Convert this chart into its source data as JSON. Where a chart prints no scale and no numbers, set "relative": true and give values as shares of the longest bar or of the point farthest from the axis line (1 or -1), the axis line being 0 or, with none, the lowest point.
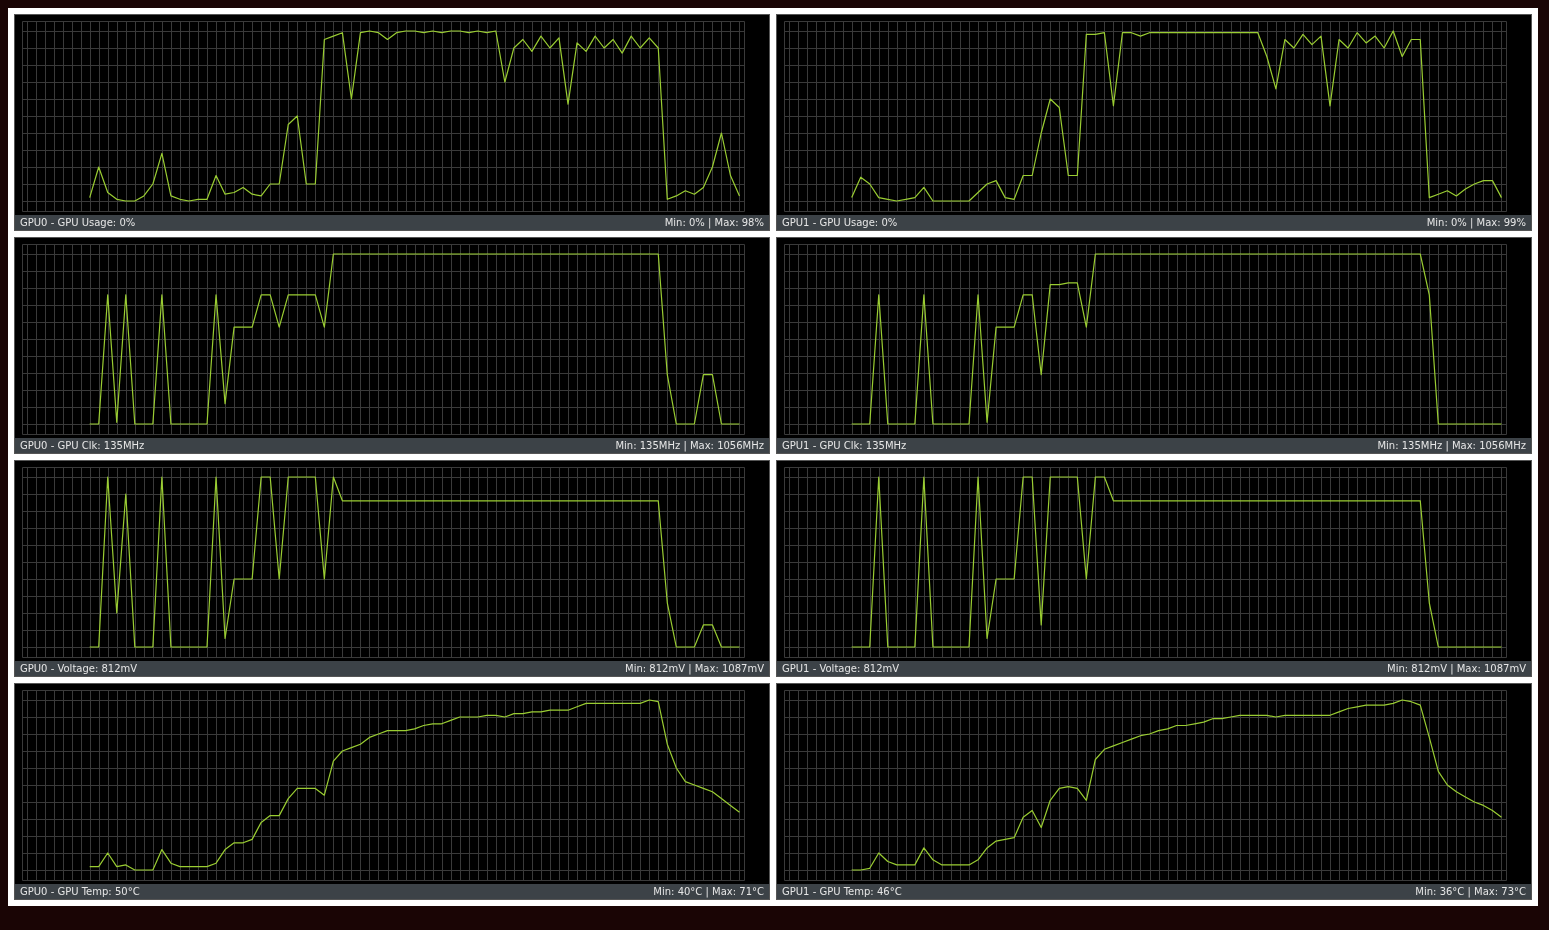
{
  "chart_data": [
    {
      "type": "line",
      "relative": true,
      "grid": true,
      "title": "GPU0 - GPU Usage: 0%",
      "annotations": [
        "Min: 0% | Max: 98%"
      ],
      "categories": [
        null,
        null,
        null,
        null,
        null,
        null,
        null,
        null,
        null,
        null,
        null,
        null,
        null,
        null,
        null,
        null,
        null,
        null,
        null,
        null,
        null,
        null,
        null,
        null,
        null,
        null,
        null,
        null,
        null,
        null,
        null,
        null,
        null,
        null,
        null,
        null,
        null,
        null,
        null,
        null,
        null,
        null,
        null,
        null,
        null,
        null,
        null,
        null,
        null,
        null,
        null,
        null,
        null,
        null,
        null,
        null,
        null,
        null,
        null,
        null,
        null,
        null,
        null,
        null,
        null,
        null,
        null,
        null,
        null,
        null,
        null,
        null,
        null,
        null,
        null,
        null,
        null,
        null,
        null,
        null
      ],
      "series": [
        {
          "color": "#9acd32",
          "values": [
            null,
            null,
            null,
            null,
            null,
            null,
            null,
            0.02,
            0.2,
            0.05,
            0.01,
            0,
            0,
            0.03,
            0.1,
            0.28,
            0.03,
            0.01,
            0,
            0.01,
            0.01,
            0.15,
            0.04,
            0.05,
            0.08,
            0.04,
            0.03,
            0.1,
            0.1,
            0.45,
            0.5,
            0.1,
            0.1,
            0.95,
            0.97,
            0.99,
            0.6,
            0.99,
            1,
            0.99,
            0.95,
            0.99,
            1,
            1,
            0.99,
            1,
            0.99,
            1,
            1,
            0.99,
            1,
            0.99,
            1,
            0.7,
            0.9,
            0.95,
            0.88,
            0.97,
            0.9,
            0.96,
            0.57,
            0.93,
            0.88,
            0.97,
            0.9,
            0.95,
            0.87,
            0.97,
            0.9,
            0.96,
            0.9,
            0.01,
            0.03,
            0.06,
            0.04,
            0.08,
            0.2,
            0.4,
            0.15,
            0.03
          ]
        }
      ]
    },
    {
      "type": "line",
      "relative": true,
      "grid": true,
      "title": "GPU1 - GPU Usage: 0%",
      "annotations": [
        "Min: 0% | Max: 99%"
      ],
      "categories": [
        null,
        null,
        null,
        null,
        null,
        null,
        null,
        null,
        null,
        null,
        null,
        null,
        null,
        null,
        null,
        null,
        null,
        null,
        null,
        null,
        null,
        null,
        null,
        null,
        null,
        null,
        null,
        null,
        null,
        null,
        null,
        null,
        null,
        null,
        null,
        null,
        null,
        null,
        null,
        null,
        null,
        null,
        null,
        null,
        null,
        null,
        null,
        null,
        null,
        null,
        null,
        null,
        null,
        null,
        null,
        null,
        null,
        null,
        null,
        null,
        null,
        null,
        null,
        null,
        null,
        null,
        null,
        null,
        null,
        null,
        null,
        null,
        null,
        null,
        null,
        null,
        null,
        null,
        null,
        null
      ],
      "series": [
        {
          "color": "#9acd32",
          "values": [
            null,
            null,
            null,
            null,
            null,
            null,
            null,
            0.02,
            0.14,
            0.1,
            0.02,
            0.01,
            0,
            0.01,
            0.02,
            0.08,
            0,
            0,
            0,
            0,
            0,
            0.05,
            0.1,
            0.12,
            0.02,
            0.01,
            0.15,
            0.15,
            0.4,
            0.6,
            0.55,
            0.15,
            0.15,
            0.98,
            0.98,
            0.99,
            0.56,
            0.99,
            0.99,
            0.97,
            0.99,
            0.99,
            0.99,
            0.99,
            0.99,
            0.99,
            0.99,
            0.99,
            0.99,
            0.99,
            0.99,
            0.99,
            0.99,
            0.85,
            0.66,
            0.95,
            0.9,
            0.98,
            0.92,
            0.97,
            0.56,
            0.95,
            0.9,
            0.99,
            0.93,
            0.97,
            0.9,
            1,
            0.85,
            0.95,
            0.95,
            0.02,
            0.04,
            0.06,
            0.03,
            0.07,
            0.1,
            0.12,
            0.12,
            0.02
          ]
        }
      ]
    },
    {
      "type": "line",
      "relative": true,
      "grid": true,
      "title": "GPU0 - GPU Clk: 135MHz",
      "annotations": [
        "Min: 135MHz | Max: 1056MHz"
      ],
      "categories": [
        null,
        null,
        null,
        null,
        null,
        null,
        null,
        null,
        null,
        null,
        null,
        null,
        null,
        null,
        null,
        null,
        null,
        null,
        null,
        null,
        null,
        null,
        null,
        null,
        null,
        null,
        null,
        null,
        null,
        null,
        null,
        null,
        null,
        null,
        null,
        null,
        null,
        null,
        null,
        null,
        null,
        null,
        null,
        null,
        null,
        null,
        null,
        null,
        null,
        null,
        null,
        null,
        null,
        null,
        null,
        null,
        null,
        null,
        null,
        null,
        null,
        null,
        null,
        null,
        null,
        null,
        null,
        null,
        null,
        null,
        null,
        null,
        null,
        null,
        null,
        null,
        null,
        null,
        null,
        null
      ],
      "series": [
        {
          "color": "#9acd32",
          "values": [
            null,
            null,
            null,
            null,
            null,
            null,
            null,
            0,
            0,
            0.76,
            0.01,
            0.76,
            0,
            0,
            0,
            0.76,
            0,
            0,
            0,
            0,
            0,
            0.76,
            0.12,
            0.57,
            0.57,
            0.57,
            0.76,
            0.76,
            0.57,
            0.76,
            0.76,
            0.76,
            0.76,
            0.57,
            1,
            1,
            1,
            1,
            1,
            1,
            1,
            1,
            1,
            1,
            1,
            1,
            1,
            1,
            1,
            1,
            1,
            1,
            1,
            1,
            1,
            1,
            1,
            1,
            1,
            1,
            1,
            1,
            1,
            1,
            1,
            1,
            1,
            1,
            1,
            1,
            1,
            0.29,
            0,
            0,
            0,
            0.29,
            0.29,
            0,
            0,
            0
          ]
        }
      ]
    },
    {
      "type": "line",
      "relative": true,
      "grid": true,
      "title": "GPU1 - GPU Clk: 135MHz",
      "annotations": [
        "Min: 135MHz | Max: 1056MHz"
      ],
      "categories": [
        null,
        null,
        null,
        null,
        null,
        null,
        null,
        null,
        null,
        null,
        null,
        null,
        null,
        null,
        null,
        null,
        null,
        null,
        null,
        null,
        null,
        null,
        null,
        null,
        null,
        null,
        null,
        null,
        null,
        null,
        null,
        null,
        null,
        null,
        null,
        null,
        null,
        null,
        null,
        null,
        null,
        null,
        null,
        null,
        null,
        null,
        null,
        null,
        null,
        null,
        null,
        null,
        null,
        null,
        null,
        null,
        null,
        null,
        null,
        null,
        null,
        null,
        null,
        null,
        null,
        null,
        null,
        null,
        null,
        null,
        null,
        null,
        null,
        null,
        null,
        null,
        null,
        null,
        null,
        null
      ],
      "series": [
        {
          "color": "#9acd32",
          "values": [
            null,
            null,
            null,
            null,
            null,
            null,
            null,
            0,
            0,
            0,
            0.76,
            0,
            0,
            0,
            0,
            0.76,
            0,
            0,
            0,
            0,
            0,
            0.76,
            0.01,
            0.57,
            0.57,
            0.57,
            0.76,
            0.76,
            0.29,
            0.82,
            0.82,
            0.83,
            0.83,
            0.57,
            1,
            1,
            1,
            1,
            1,
            1,
            1,
            1,
            1,
            1,
            1,
            1,
            1,
            1,
            1,
            1,
            1,
            1,
            1,
            1,
            1,
            1,
            1,
            1,
            1,
            1,
            1,
            1,
            1,
            1,
            1,
            1,
            1,
            1,
            1,
            1,
            1,
            0.76,
            0,
            0,
            0,
            0,
            0,
            0,
            0,
            0
          ]
        }
      ]
    },
    {
      "type": "line",
      "relative": true,
      "grid": true,
      "title": "GPU0 - Voltage: 812mV",
      "annotations": [
        "Min: 812mV | Max: 1087mV"
      ],
      "categories": [
        null,
        null,
        null,
        null,
        null,
        null,
        null,
        null,
        null,
        null,
        null,
        null,
        null,
        null,
        null,
        null,
        null,
        null,
        null,
        null,
        null,
        null,
        null,
        null,
        null,
        null,
        null,
        null,
        null,
        null,
        null,
        null,
        null,
        null,
        null,
        null,
        null,
        null,
        null,
        null,
        null,
        null,
        null,
        null,
        null,
        null,
        null,
        null,
        null,
        null,
        null,
        null,
        null,
        null,
        null,
        null,
        null,
        null,
        null,
        null,
        null,
        null,
        null,
        null,
        null,
        null,
        null,
        null,
        null,
        null,
        null,
        null,
        null,
        null,
        null,
        null,
        null,
        null,
        null,
        null
      ],
      "series": [
        {
          "color": "#9acd32",
          "values": [
            null,
            null,
            null,
            null,
            null,
            null,
            null,
            0,
            0,
            1,
            0.2,
            0.9,
            0,
            0,
            0,
            1,
            0,
            0,
            0,
            0,
            0,
            1,
            0.05,
            0.4,
            0.4,
            0.4,
            1,
            1,
            0.4,
            1,
            1,
            1,
            1,
            0.4,
            1,
            0.86,
            0.86,
            0.86,
            0.86,
            0.86,
            0.86,
            0.86,
            0.86,
            0.86,
            0.86,
            0.86,
            0.86,
            0.86,
            0.86,
            0.86,
            0.86,
            0.86,
            0.86,
            0.86,
            0.86,
            0.86,
            0.86,
            0.86,
            0.86,
            0.86,
            0.86,
            0.86,
            0.86,
            0.86,
            0.86,
            0.86,
            0.86,
            0.86,
            0.86,
            0.86,
            0.86,
            0.26,
            0,
            0,
            0,
            0.13,
            0.13,
            0,
            0,
            0
          ]
        }
      ]
    },
    {
      "type": "line",
      "relative": true,
      "grid": true,
      "title": "GPU1 - Voltage: 812mV",
      "annotations": [
        "Min: 812mV | Max: 1087mV"
      ],
      "categories": [
        null,
        null,
        null,
        null,
        null,
        null,
        null,
        null,
        null,
        null,
        null,
        null,
        null,
        null,
        null,
        null,
        null,
        null,
        null,
        null,
        null,
        null,
        null,
        null,
        null,
        null,
        null,
        null,
        null,
        null,
        null,
        null,
        null,
        null,
        null,
        null,
        null,
        null,
        null,
        null,
        null,
        null,
        null,
        null,
        null,
        null,
        null,
        null,
        null,
        null,
        null,
        null,
        null,
        null,
        null,
        null,
        null,
        null,
        null,
        null,
        null,
        null,
        null,
        null,
        null,
        null,
        null,
        null,
        null,
        null,
        null,
        null,
        null,
        null,
        null,
        null,
        null,
        null,
        null,
        null
      ],
      "series": [
        {
          "color": "#9acd32",
          "values": [
            null,
            null,
            null,
            null,
            null,
            null,
            null,
            0,
            0,
            0,
            1,
            0,
            0,
            0,
            0,
            1,
            0,
            0,
            0,
            0,
            0,
            1,
            0.05,
            0.4,
            0.4,
            0.4,
            1,
            1,
            0.13,
            1,
            1,
            1,
            1,
            0.4,
            1,
            1,
            0.86,
            0.86,
            0.86,
            0.86,
            0.86,
            0.86,
            0.86,
            0.86,
            0.86,
            0.86,
            0.86,
            0.86,
            0.86,
            0.86,
            0.86,
            0.86,
            0.86,
            0.86,
            0.86,
            0.86,
            0.86,
            0.86,
            0.86,
            0.86,
            0.86,
            0.86,
            0.86,
            0.86,
            0.86,
            0.86,
            0.86,
            0.86,
            0.86,
            0.86,
            0.86,
            0.26,
            0,
            0,
            0,
            0,
            0,
            0,
            0,
            0
          ]
        }
      ]
    },
    {
      "type": "line",
      "relative": true,
      "grid": true,
      "title": "GPU0 - GPU Temp: 50°C",
      "annotations": [
        "Min: 40°C | Max: 71°C"
      ],
      "categories": [
        null,
        null,
        null,
        null,
        null,
        null,
        null,
        null,
        null,
        null,
        null,
        null,
        null,
        null,
        null,
        null,
        null,
        null,
        null,
        null,
        null,
        null,
        null,
        null,
        null,
        null,
        null,
        null,
        null,
        null,
        null,
        null,
        null,
        null,
        null,
        null,
        null,
        null,
        null,
        null,
        null,
        null,
        null,
        null,
        null,
        null,
        null,
        null,
        null,
        null,
        null,
        null,
        null,
        null,
        null,
        null,
        null,
        null,
        null,
        null,
        null,
        null,
        null,
        null,
        null,
        null,
        null,
        null,
        null,
        null,
        null,
        null,
        null,
        null,
        null,
        null,
        null,
        null,
        null,
        null
      ],
      "series": [
        {
          "color": "#9acd32",
          "values": [
            null,
            null,
            null,
            null,
            null,
            null,
            null,
            0.02,
            0.02,
            0.1,
            0.02,
            0.03,
            0,
            0,
            0,
            0.12,
            0.04,
            0.02,
            0.02,
            0.02,
            0.02,
            0.04,
            0.12,
            0.16,
            0.16,
            0.18,
            0.28,
            0.32,
            0.32,
            0.42,
            0.48,
            0.48,
            0.48,
            0.44,
            0.64,
            0.7,
            0.72,
            0.74,
            0.78,
            0.8,
            0.82,
            0.82,
            0.82,
            0.83,
            0.85,
            0.86,
            0.86,
            0.88,
            0.9,
            0.9,
            0.9,
            0.91,
            0.91,
            0.9,
            0.92,
            0.92,
            0.93,
            0.93,
            0.94,
            0.94,
            0.94,
            0.96,
            0.98,
            0.98,
            0.98,
            0.98,
            0.98,
            0.98,
            0.98,
            1,
            0.99,
            0.74,
            0.6,
            0.52,
            0.5,
            0.48,
            0.46,
            0.42,
            0.38,
            0.34
          ]
        }
      ]
    },
    {
      "type": "line",
      "relative": true,
      "grid": true,
      "title": "GPU1 - GPU Temp: 46°C",
      "annotations": [
        "Min: 36°C | Max: 73°C"
      ],
      "categories": [
        null,
        null,
        null,
        null,
        null,
        null,
        null,
        null,
        null,
        null,
        null,
        null,
        null,
        null,
        null,
        null,
        null,
        null,
        null,
        null,
        null,
        null,
        null,
        null,
        null,
        null,
        null,
        null,
        null,
        null,
        null,
        null,
        null,
        null,
        null,
        null,
        null,
        null,
        null,
        null,
        null,
        null,
        null,
        null,
        null,
        null,
        null,
        null,
        null,
        null,
        null,
        null,
        null,
        null,
        null,
        null,
        null,
        null,
        null,
        null,
        null,
        null,
        null,
        null,
        null,
        null,
        null,
        null,
        null,
        null,
        null,
        null,
        null,
        null,
        null,
        null,
        null,
        null,
        null,
        null
      ],
      "series": [
        {
          "color": "#9acd32",
          "values": [
            null,
            null,
            null,
            null,
            null,
            null,
            null,
            0,
            0,
            0.01,
            0.1,
            0.05,
            0.03,
            0.03,
            0.03,
            0.13,
            0.06,
            0.03,
            0.03,
            0.03,
            0.03,
            0.06,
            0.13,
            0.17,
            0.18,
            0.19,
            0.31,
            0.35,
            0.25,
            0.41,
            0.48,
            0.49,
            0.48,
            0.41,
            0.65,
            0.71,
            0.73,
            0.75,
            0.77,
            0.79,
            0.8,
            0.82,
            0.83,
            0.85,
            0.85,
            0.86,
            0.87,
            0.89,
            0.89,
            0.9,
            0.91,
            0.91,
            0.91,
            0.91,
            0.9,
            0.91,
            0.91,
            0.91,
            0.91,
            0.91,
            0.91,
            0.93,
            0.95,
            0.96,
            0.97,
            0.97,
            0.97,
            0.98,
            1,
            0.99,
            0.97,
            0.78,
            0.58,
            0.5,
            0.46,
            0.43,
            0.4,
            0.38,
            0.35,
            0.31
          ]
        }
      ]
    }
  ]
}
